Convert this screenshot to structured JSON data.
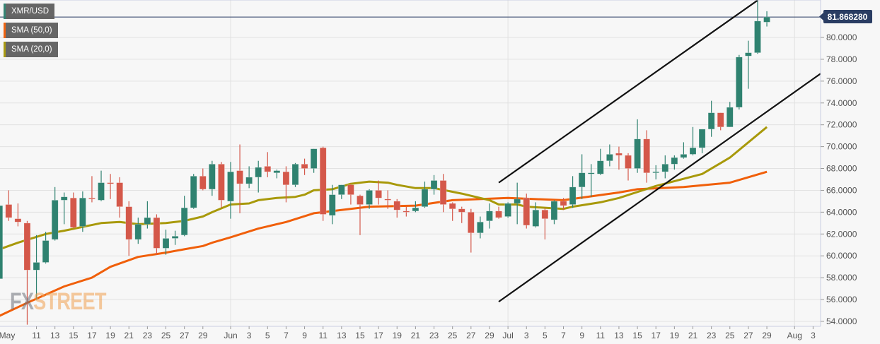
{
  "legend": [
    {
      "label": "XMR/USD",
      "color": "#2f8270"
    },
    {
      "label": "SMA (50,0)",
      "color": "#f05f0a"
    },
    {
      "label": "SMA (20,0)",
      "color": "#a8990a"
    }
  ],
  "watermark": {
    "part1": "FX",
    "part2": "STREET"
  },
  "colors": {
    "up": "#2f8270",
    "down": "#d4584a",
    "sma50": "#f05f0a",
    "sma20": "#a8990a",
    "trend": "#111111",
    "price_line": "#2a3d63"
  },
  "chart_data": {
    "type": "candlestick",
    "title": "XMR/USD",
    "ylim": [
      54,
      82
    ],
    "y_ticks": [
      "54.0000",
      "56.0000",
      "58.0000",
      "60.0000",
      "62.0000",
      "64.0000",
      "66.0000",
      "68.0000",
      "70.0000",
      "72.0000",
      "74.0000",
      "76.0000",
      "78.0000",
      "80.0000"
    ],
    "current_price": {
      "value": 81.86828,
      "label": "81.868280"
    },
    "x_ticks": [
      {
        "label": "May",
        "date": "May 7"
      },
      {
        "label": "11",
        "date": "May 11"
      },
      {
        "label": "13",
        "date": "May 13"
      },
      {
        "label": "15",
        "date": "May 15"
      },
      {
        "label": "17",
        "date": "May 17"
      },
      {
        "label": "19",
        "date": "May 19"
      },
      {
        "label": "21",
        "date": "May 21"
      },
      {
        "label": "23",
        "date": "May 23"
      },
      {
        "label": "25",
        "date": "May 25"
      },
      {
        "label": "27",
        "date": "May 27"
      },
      {
        "label": "29",
        "date": "May 29"
      },
      {
        "label": "Jun",
        "date": "Jun 1"
      },
      {
        "label": "3",
        "date": "Jun 3"
      },
      {
        "label": "5",
        "date": "Jun 5"
      },
      {
        "label": "7",
        "date": "Jun 7"
      },
      {
        "label": "9",
        "date": "Jun 9"
      },
      {
        "label": "11",
        "date": "Jun 11"
      },
      {
        "label": "13",
        "date": "Jun 13"
      },
      {
        "label": "15",
        "date": "Jun 15"
      },
      {
        "label": "17",
        "date": "Jun 17"
      },
      {
        "label": "19",
        "date": "Jun 19"
      },
      {
        "label": "21",
        "date": "Jun 21"
      },
      {
        "label": "23",
        "date": "Jun 23"
      },
      {
        "label": "25",
        "date": "Jun 25"
      },
      {
        "label": "27",
        "date": "Jun 27"
      },
      {
        "label": "29",
        "date": "Jun 29"
      },
      {
        "label": "Jul",
        "date": "Jul 1"
      },
      {
        "label": "3",
        "date": "Jul 3"
      },
      {
        "label": "5",
        "date": "Jul 5"
      },
      {
        "label": "7",
        "date": "Jul 7"
      },
      {
        "label": "9",
        "date": "Jul 9"
      },
      {
        "label": "11",
        "date": "Jul 11"
      },
      {
        "label": "13",
        "date": "Jul 13"
      },
      {
        "label": "15",
        "date": "Jul 15"
      },
      {
        "label": "17",
        "date": "Jul 17"
      },
      {
        "label": "19",
        "date": "Jul 19"
      },
      {
        "label": "21",
        "date": "Jul 21"
      },
      {
        "label": "23",
        "date": "Jul 23"
      },
      {
        "label": "25",
        "date": "Jul 25"
      },
      {
        "label": "27",
        "date": "Jul 27"
      },
      {
        "label": "29",
        "date": "Jul 29"
      },
      {
        "label": "Aug",
        "date": "Aug 1"
      },
      {
        "label": "3",
        "date": "Aug 3"
      }
    ],
    "candles_format": [
      "date",
      "open",
      "high",
      "low",
      "close"
    ],
    "candles": [
      [
        "May 7",
        57.9,
        65.0,
        57.5,
        64.6
      ],
      [
        "May 8",
        64.7,
        66.0,
        63.2,
        63.5
      ],
      [
        "May 9",
        63.4,
        64.8,
        62.7,
        63.1
      ],
      [
        "May 10",
        63.0,
        63.2,
        53.7,
        58.7
      ],
      [
        "May 11",
        58.7,
        61.9,
        56.0,
        59.4
      ],
      [
        "May 12",
        59.4,
        62.2,
        59.3,
        61.4
      ],
      [
        "May 13",
        61.5,
        66.3,
        61.4,
        65.1
      ],
      [
        "May 14",
        65.1,
        65.8,
        62.9,
        65.4
      ],
      [
        "May 15",
        65.3,
        65.8,
        62.5,
        62.6
      ],
      [
        "May 16",
        62.7,
        65.9,
        62.2,
        65.3
      ],
      [
        "May 17",
        65.3,
        67.3,
        64.9,
        65.2
      ],
      [
        "May 18",
        65.1,
        67.8,
        65.0,
        66.7
      ],
      [
        "May 19",
        66.7,
        67.5,
        65.2,
        66.6
      ],
      [
        "May 20",
        66.7,
        67.2,
        63.5,
        64.5
      ],
      [
        "May 21",
        64.5,
        65.0,
        60.0,
        61.5
      ],
      [
        "May 22",
        61.5,
        63.5,
        61.1,
        62.9
      ],
      [
        "May 23",
        62.9,
        65.0,
        62.5,
        63.5
      ],
      [
        "May 24",
        63.5,
        63.8,
        60.1,
        60.7
      ],
      [
        "May 25",
        60.7,
        62.4,
        60.1,
        61.6
      ],
      [
        "May 26",
        61.6,
        62.3,
        61.0,
        61.8
      ],
      [
        "May 27",
        61.9,
        65.5,
        61.8,
        64.4
      ],
      [
        "May 28",
        64.4,
        67.5,
        64.3,
        67.3
      ],
      [
        "May 29",
        67.3,
        68.0,
        66.0,
        66.1
      ],
      [
        "May 30",
        66.1,
        68.7,
        65.5,
        68.4
      ],
      [
        "May 31",
        68.4,
        68.6,
        64.4,
        65.1
      ],
      [
        "Jun 1",
        65.0,
        68.6,
        63.4,
        67.7
      ],
      [
        "Jun 2",
        67.8,
        70.2,
        63.9,
        66.6
      ],
      [
        "Jun 3",
        66.6,
        68.2,
        66.2,
        67.2
      ],
      [
        "Jun 4",
        67.2,
        68.7,
        65.8,
        68.1
      ],
      [
        "Jun 5",
        68.2,
        69.5,
        67.2,
        67.7
      ],
      [
        "Jun 6",
        67.6,
        67.9,
        67.1,
        67.8
      ],
      [
        "Jun 7",
        67.7,
        68.2,
        64.9,
        66.5
      ],
      [
        "Jun 8",
        66.5,
        68.5,
        66.3,
        68.4
      ],
      [
        "Jun 9",
        68.4,
        68.9,
        67.4,
        68.0
      ],
      [
        "Jun 10",
        68.0,
        69.8,
        67.6,
        69.8
      ],
      [
        "Jun 11",
        69.9,
        70.0,
        63.2,
        63.8
      ],
      [
        "Jun 12",
        63.7,
        66.5,
        62.9,
        65.6
      ],
      [
        "Jun 13",
        65.6,
        66.5,
        65.2,
        66.5
      ],
      [
        "Jun 14",
        66.5,
        66.6,
        64.7,
        65.6
      ],
      [
        "Jun 15",
        65.5,
        65.6,
        61.9,
        64.7
      ],
      [
        "Jun 16",
        64.7,
        66.1,
        64.3,
        66.0
      ],
      [
        "Jun 17",
        66.0,
        66.9,
        64.7,
        65.3
      ],
      [
        "Jun 18",
        65.2,
        66.0,
        64.3,
        65.1
      ],
      [
        "Jun 19",
        65.0,
        65.2,
        63.5,
        64.2
      ],
      [
        "Jun 20",
        64.1,
        64.5,
        63.6,
        64.0
      ],
      [
        "Jun 21",
        64.1,
        65.0,
        64.0,
        64.4
      ],
      [
        "Jun 22",
        64.5,
        66.8,
        64.4,
        66.1
      ],
      [
        "Jun 23",
        66.1,
        67.4,
        65.6,
        66.9
      ],
      [
        "Jun 24",
        66.9,
        67.5,
        64.0,
        64.7
      ],
      [
        "Jun 25",
        64.8,
        64.9,
        63.2,
        64.3
      ],
      [
        "Jun 26",
        64.3,
        64.5,
        63.0,
        64.0
      ],
      [
        "Jun 27",
        64.0,
        64.3,
        60.3,
        62.1
      ],
      [
        "Jun 28",
        62.1,
        63.6,
        61.6,
        63.1
      ],
      [
        "Jun 29",
        63.2,
        64.8,
        62.5,
        64.1
      ],
      [
        "Jun 30",
        64.1,
        64.5,
        63.4,
        63.5
      ],
      [
        "Jul 1",
        63.6,
        64.9,
        63.5,
        64.8
      ],
      [
        "Jul 2",
        64.8,
        66.7,
        62.9,
        65.2
      ],
      [
        "Jul 3",
        65.3,
        65.7,
        62.5,
        62.8
      ],
      [
        "Jul 4",
        62.7,
        64.9,
        62.6,
        64.2
      ],
      [
        "Jul 5",
        64.2,
        64.4,
        61.5,
        63.4
      ],
      [
        "Jul 6",
        63.3,
        65.1,
        62.9,
        65.0
      ],
      [
        "Jul 7",
        65.0,
        65.3,
        64.2,
        64.6
      ],
      [
        "Jul 8",
        64.7,
        67.3,
        64.4,
        66.3
      ],
      [
        "Jul 9",
        66.3,
        69.3,
        65.2,
        67.6
      ],
      [
        "Jul 10",
        67.5,
        68.4,
        65.4,
        67.6
      ],
      [
        "Jul 11",
        67.5,
        69.8,
        67.4,
        68.7
      ],
      [
        "Jul 12",
        68.7,
        70.2,
        68.2,
        69.3
      ],
      [
        "Jul 13",
        69.4,
        70.0,
        67.9,
        69.2
      ],
      [
        "Jul 14",
        69.2,
        69.4,
        66.9,
        68.0
      ],
      [
        "Jul 15",
        68.0,
        72.5,
        67.6,
        70.7
      ],
      [
        "Jul 16",
        70.7,
        71.5,
        66.7,
        67.6
      ],
      [
        "Jul 17",
        67.6,
        68.3,
        67.0,
        67.7
      ],
      [
        "Jul 18",
        67.7,
        69.2,
        67.1,
        68.4
      ],
      [
        "Jul 19",
        68.4,
        69.2,
        67.9,
        69.0
      ],
      [
        "Jul 20",
        69.0,
        70.4,
        68.9,
        69.3
      ],
      [
        "Jul 21",
        69.3,
        71.8,
        69.2,
        69.9
      ],
      [
        "Jul 22",
        69.9,
        71.6,
        69.4,
        71.6
      ],
      [
        "Jul 23",
        71.6,
        74.2,
        70.9,
        73.1
      ],
      [
        "Jul 24",
        73.1,
        73.1,
        71.5,
        71.8
      ],
      [
        "Jul 25",
        71.8,
        74.1,
        71.8,
        73.6
      ],
      [
        "Jul 26",
        73.6,
        78.4,
        73.4,
        78.2
      ],
      [
        "Jul 27",
        78.3,
        79.7,
        75.3,
        78.6
      ],
      [
        "Jul 28",
        78.6,
        83.4,
        78.5,
        81.5
      ],
      [
        "Jul 29",
        81.4,
        82.4,
        81.0,
        81.87
      ]
    ],
    "series": [
      {
        "name": "SMA (50,0)",
        "points": [
          [
            "May 7",
            54.5
          ],
          [
            "May 10",
            55.7
          ],
          [
            "May 14",
            57.2
          ],
          [
            "May 17",
            58.0
          ],
          [
            "May 19",
            59.0
          ],
          [
            "May 22",
            59.9
          ],
          [
            "May 25",
            60.3
          ],
          [
            "May 27",
            60.6
          ],
          [
            "May 29",
            60.9
          ],
          [
            "May 30",
            61.2
          ],
          [
            "Jun 1",
            61.7
          ],
          [
            "Jun 4",
            62.5
          ],
          [
            "Jun 7",
            63.1
          ],
          [
            "Jun 10",
            63.9
          ],
          [
            "Jun 13",
            64.2
          ],
          [
            "Jun 16",
            64.5
          ],
          [
            "Jun 21",
            64.6
          ],
          [
            "Jun 25",
            65.1
          ],
          [
            "Jul 1",
            65.3
          ],
          [
            "Jul 7",
            65.1
          ],
          [
            "Jul 13",
            65.8
          ],
          [
            "Jul 15",
            66.1
          ],
          [
            "Jul 20",
            66.3
          ],
          [
            "Jul 25",
            66.7
          ],
          [
            "Jul 29",
            67.7
          ]
        ]
      },
      {
        "name": "SMA (20,0)",
        "points": [
          [
            "May 7",
            60.6
          ],
          [
            "May 9",
            61.2
          ],
          [
            "May 12",
            62.0
          ],
          [
            "May 14",
            62.3
          ],
          [
            "May 18",
            63.0
          ],
          [
            "May 20",
            63.1
          ],
          [
            "May 22",
            62.9
          ],
          [
            "May 25",
            63.0
          ],
          [
            "May 27",
            63.2
          ],
          [
            "May 29",
            63.6
          ],
          [
            "May 30",
            64.0
          ],
          [
            "Jun 1",
            64.7
          ],
          [
            "Jun 3",
            64.8
          ],
          [
            "Jun 4",
            65.1
          ],
          [
            "Jun 6",
            65.3
          ],
          [
            "Jun 8",
            65.4
          ],
          [
            "Jun 9",
            65.6
          ],
          [
            "Jun 10",
            66.0
          ],
          [
            "Jun 12",
            66.1
          ],
          [
            "Jun 14",
            66.6
          ],
          [
            "Jun 16",
            66.8
          ],
          [
            "Jun 18",
            66.7
          ],
          [
            "Jun 19",
            66.5
          ],
          [
            "Jun 21",
            66.2
          ],
          [
            "Jun 23",
            66.2
          ],
          [
            "Jun 26",
            65.7
          ],
          [
            "Jun 29",
            65.1
          ],
          [
            "Jun 30",
            64.7
          ],
          [
            "Jul 2",
            64.7
          ],
          [
            "Jul 3",
            64.5
          ],
          [
            "Jul 7",
            64.3
          ],
          [
            "Jul 8",
            64.5
          ],
          [
            "Jul 11",
            64.9
          ],
          [
            "Jul 13",
            65.3
          ],
          [
            "Jul 17",
            66.4
          ],
          [
            "Jul 22",
            67.5
          ],
          [
            "Jul 25",
            69.0
          ],
          [
            "Jul 29",
            71.8
          ]
        ]
      }
    ],
    "trend_lines": [
      {
        "name": "upper-channel",
        "from": [
          "Jun 30",
          66.7
        ],
        "to": [
          "Jul 28",
          83.4
        ]
      },
      {
        "name": "lower-channel",
        "from": [
          "Jun 30",
          55.8
        ],
        "to": [
          "Aug 4",
          76.8
        ]
      }
    ]
  }
}
